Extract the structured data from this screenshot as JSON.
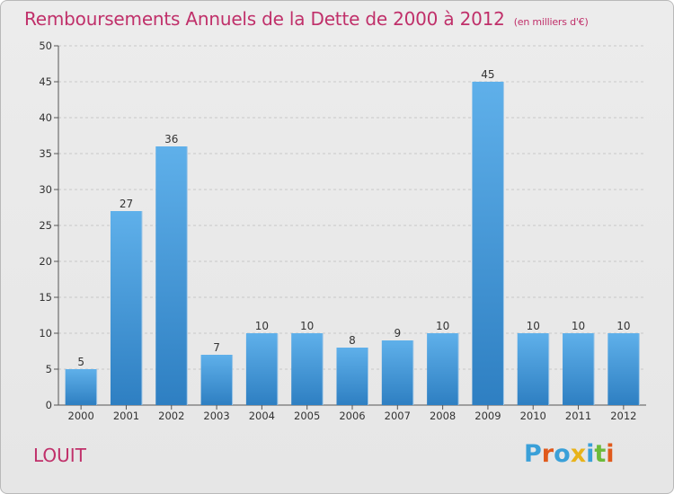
{
  "chart_data": {
    "type": "bar",
    "title": "Remboursements Annuels de la Dette de 2000 à 2012",
    "subtitle": "(en milliers d'€)",
    "categories": [
      "2000",
      "2001",
      "2002",
      "2003",
      "2004",
      "2005",
      "2006",
      "2007",
      "2008",
      "2009",
      "2010",
      "2011",
      "2012"
    ],
    "values": [
      5,
      27,
      36,
      7,
      10,
      10,
      8,
      9,
      10,
      45,
      10,
      10,
      10
    ],
    "ylim": [
      0,
      50
    ],
    "yticks": [
      0,
      5,
      10,
      15,
      20,
      25,
      30,
      35,
      40,
      45,
      50
    ],
    "grid": "horizontal dashed",
    "bar_color": "#3d93d6"
  },
  "footer": {
    "commune": "LOUIT",
    "logo_letters": [
      {
        "ch": "P",
        "color": "#3aa0d8"
      },
      {
        "ch": "r",
        "color": "#e05a1c"
      },
      {
        "ch": "o",
        "color": "#3aa0d8"
      },
      {
        "ch": "x",
        "color": "#e8b31a"
      },
      {
        "ch": "i",
        "color": "#3aa0d8"
      },
      {
        "ch": "t",
        "color": "#6cba3a"
      },
      {
        "ch": "i",
        "color": "#e05a1c"
      }
    ]
  }
}
